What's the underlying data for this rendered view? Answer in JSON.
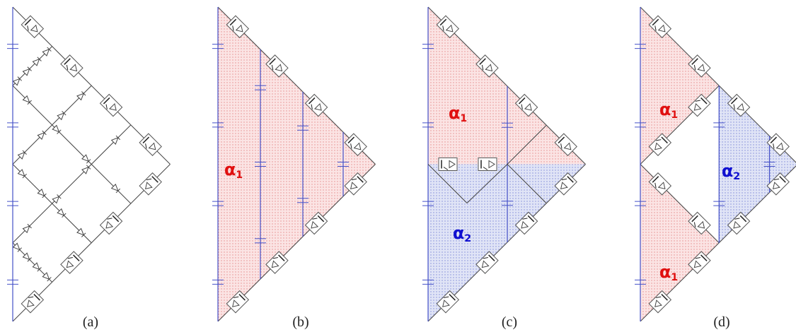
{
  "panels": [
    {
      "caption": "(a)",
      "regions": []
    },
    {
      "caption": "(b)",
      "regions": [
        {
          "label": "α",
          "subscript": "1"
        }
      ]
    },
    {
      "caption": "(c)",
      "regions": [
        {
          "label": "α",
          "subscript": "1"
        },
        {
          "label": "α",
          "subscript": "2"
        }
      ]
    },
    {
      "caption": "(d)",
      "regions": [
        {
          "label": "α",
          "subscript": "1"
        },
        {
          "label": "α",
          "subscript": "2"
        },
        {
          "label": "α",
          "subscript": "1"
        }
      ]
    }
  ]
}
